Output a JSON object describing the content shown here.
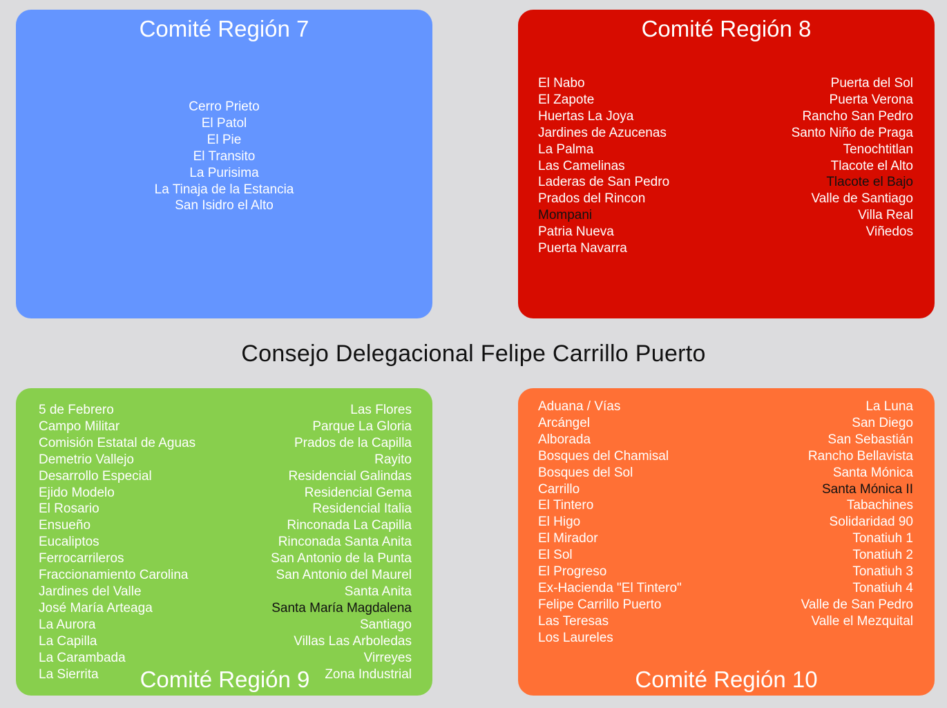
{
  "main_title": "Consejo Delegacional Felipe Carrillo Puerto",
  "colors": {
    "background": "#dcdcde",
    "region7": "#6495ff",
    "region8": "#d70c00",
    "region9": "#88cf4d",
    "region10": "#ff7035"
  },
  "region7": {
    "title": "Comité Región 7",
    "items": [
      "Cerro Prieto",
      "El Patol",
      "El Pie",
      "El Transito",
      "La Purisima",
      "La Tinaja de la Estancia",
      "San Isidro el Alto"
    ]
  },
  "region8": {
    "title": "Comité Región 8",
    "left": [
      "El Nabo",
      "El Zapote",
      "Huertas La Joya",
      "Jardines de Azucenas",
      "La Palma",
      "Las Camelinas",
      "Laderas de San Pedro",
      "Prados del Rincon",
      "Mompani",
      "Patria Nueva",
      "Puerta Navarra"
    ],
    "right": [
      "Puerta del Sol",
      "Puerta Verona",
      "Rancho San Pedro",
      "Santo Niño de Praga",
      "Tenochtitlan",
      "Tlacote el Alto",
      "Tlacote el Bajo",
      "Valle de Santiago",
      "Villa Real",
      "Viñedos"
    ]
  },
  "region9": {
    "title": "Comité Región 9",
    "left": [
      "5 de Febrero",
      "Campo Militar",
      "Comisión Estatal de Aguas",
      "Demetrio Vallejo",
      "Desarrollo Especial",
      "Ejido Modelo",
      "El Rosario",
      "Ensueño",
      "Eucaliptos",
      "Ferrocarrileros",
      "Fraccionamiento Carolina",
      "Jardines del Valle",
      "José María Arteaga",
      "La Aurora",
      "La Capilla",
      "La Carambada",
      "La Sierrita"
    ],
    "right": [
      "Las Flores",
      "Parque La Gloria",
      "Prados de la Capilla",
      "Rayito",
      "Residencial Galindas",
      "Residencial Gema",
      "Residencial Italia",
      "Rinconada La Capilla",
      "Rinconada Santa Anita",
      "San Antonio de la Punta",
      "San Antonio del Maurel",
      "Santa Anita",
      "Santa María Magdalena",
      "Santiago",
      "Villas Las Arboledas",
      "Virreyes",
      "Zona Industrial"
    ]
  },
  "region10": {
    "title": "Comité Región 10",
    "left": [
      "Aduana / Vías",
      "Arcángel",
      "Alborada",
      "Bosques del Chamisal",
      "Bosques del Sol",
      "Carrillo",
      "El Tintero",
      "El Higo",
      "El Mirador",
      "El Sol",
      "El Progreso",
      "Ex-Hacienda \"El Tintero\"",
      "Felipe Carrillo Puerto",
      "Las Teresas",
      "Los Laureles"
    ],
    "right": [
      "La Luna",
      "San Diego",
      "San Sebastián",
      "Rancho Bellavista",
      "Santa Mónica",
      "Santa Mónica II",
      "Tabachines",
      "Solidaridad 90",
      "Tonatiuh 1",
      "Tonatiuh 2",
      "Tonatiuh 3",
      "Tonatiuh 4",
      "Valle de San Pedro",
      "Valle el Mezquital"
    ]
  }
}
